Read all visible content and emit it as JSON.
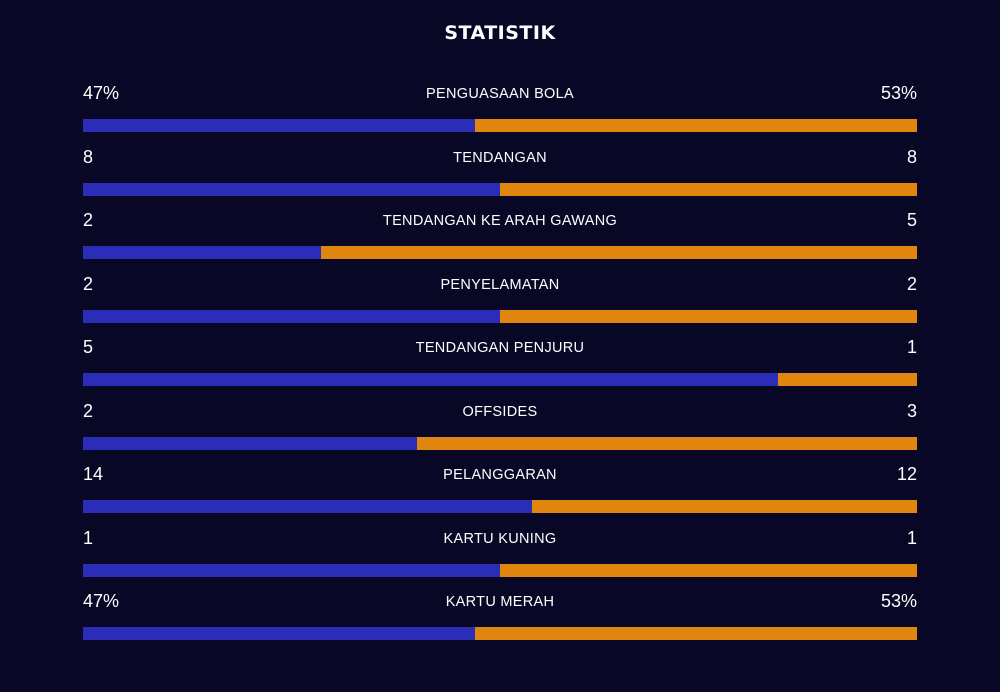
{
  "title": "STATISTIK",
  "colors": {
    "background": "#080826",
    "home": "#2b2db8",
    "away": "#e0860f",
    "text": "#ffffff"
  },
  "stats": [
    {
      "label": "PENGUASAAN BOLA",
      "home_text": "47%",
      "away_text": "53%",
      "home_share": 0.47
    },
    {
      "label": "TENDANGAN",
      "home_text": "8",
      "away_text": "8",
      "home_share": 0.5
    },
    {
      "label": "TENDANGAN KE ARAH GAWANG",
      "home_text": "2",
      "away_text": "5",
      "home_share": 0.2857
    },
    {
      "label": "PENYELAMATAN",
      "home_text": "2",
      "away_text": "2",
      "home_share": 0.5
    },
    {
      "label": "TENDANGAN PENJURU",
      "home_text": "5",
      "away_text": "1",
      "home_share": 0.8333
    },
    {
      "label": "OFFSIDES",
      "home_text": "2",
      "away_text": "3",
      "home_share": 0.4
    },
    {
      "label": "PELANGGARAN",
      "home_text": "14",
      "away_text": "12",
      "home_share": 0.5385
    },
    {
      "label": "KARTU KUNING",
      "home_text": "1",
      "away_text": "1",
      "home_share": 0.5
    },
    {
      "label": "KARTU MERAH",
      "home_text": "47%",
      "away_text": "53%",
      "home_share": 0.47
    }
  ]
}
